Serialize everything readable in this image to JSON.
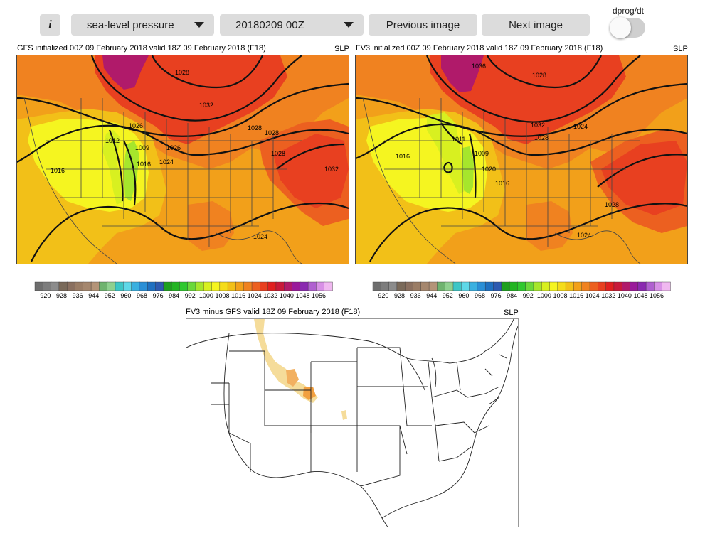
{
  "toolbar": {
    "info_label": "i",
    "variable_select": {
      "value": "sea-level pressure"
    },
    "date_select": {
      "value": "20180209 00Z"
    },
    "prev_label": "Previous image",
    "next_label": "Next image",
    "dprog_label": "dprog/dt",
    "dprog_on": false
  },
  "panels": {
    "gfs": {
      "title": "GFS initialized 00Z 09 February 2018 valid 18Z 09 February 2018 (F18)",
      "var": "SLP",
      "contour_labels": [
        "1028",
        "1032",
        "1026",
        "1028",
        "1012",
        "1009",
        "1016",
        "1024",
        "1028",
        "1016",
        "1032",
        "1024",
        "1026",
        "1028"
      ]
    },
    "fv3": {
      "title": "FV3 initialized 00Z 09 February 2018 valid 18Z 09 February 2018 (F18)",
      "var": "SLP",
      "contour_labels": [
        "1036",
        "1028",
        "1032",
        "1028",
        "1024",
        "1011",
        "1009",
        "1020",
        "1016",
        "1016",
        "1028",
        "1024"
      ]
    },
    "diff": {
      "title": "FV3 minus GFS valid 18Z 09 February 2018 (F18)",
      "var": "SLP"
    }
  },
  "colorbar": {
    "labels": [
      "920",
      "928",
      "936",
      "944",
      "952",
      "960",
      "968",
      "976",
      "984",
      "992",
      "1000",
      "1008",
      "1016",
      "1024",
      "1032",
      "1040",
      "1048",
      "1056"
    ],
    "colors": [
      "#6e6e6e",
      "#7d7d7d",
      "#8c8c8c",
      "#7a6a5a",
      "#8a7060",
      "#9a7d66",
      "#a5876e",
      "#b49478",
      "#6fb36f",
      "#8fd08f",
      "#3dc6c6",
      "#5fd8e8",
      "#3ab0e0",
      "#2a8fd6",
      "#1f70c0",
      "#2d5ab0",
      "#1ea01e",
      "#22b422",
      "#2fc82f",
      "#6ad83a",
      "#a6e62c",
      "#d8f020",
      "#f5f520",
      "#f5dc1a",
      "#f2c018",
      "#f2a01a",
      "#f08220",
      "#ec6020",
      "#e84020",
      "#e02020",
      "#c81a3a",
      "#b01a6a",
      "#9a1a9a",
      "#8a2ab0",
      "#b060d0",
      "#d890e6",
      "#f0b8f0"
    ]
  }
}
